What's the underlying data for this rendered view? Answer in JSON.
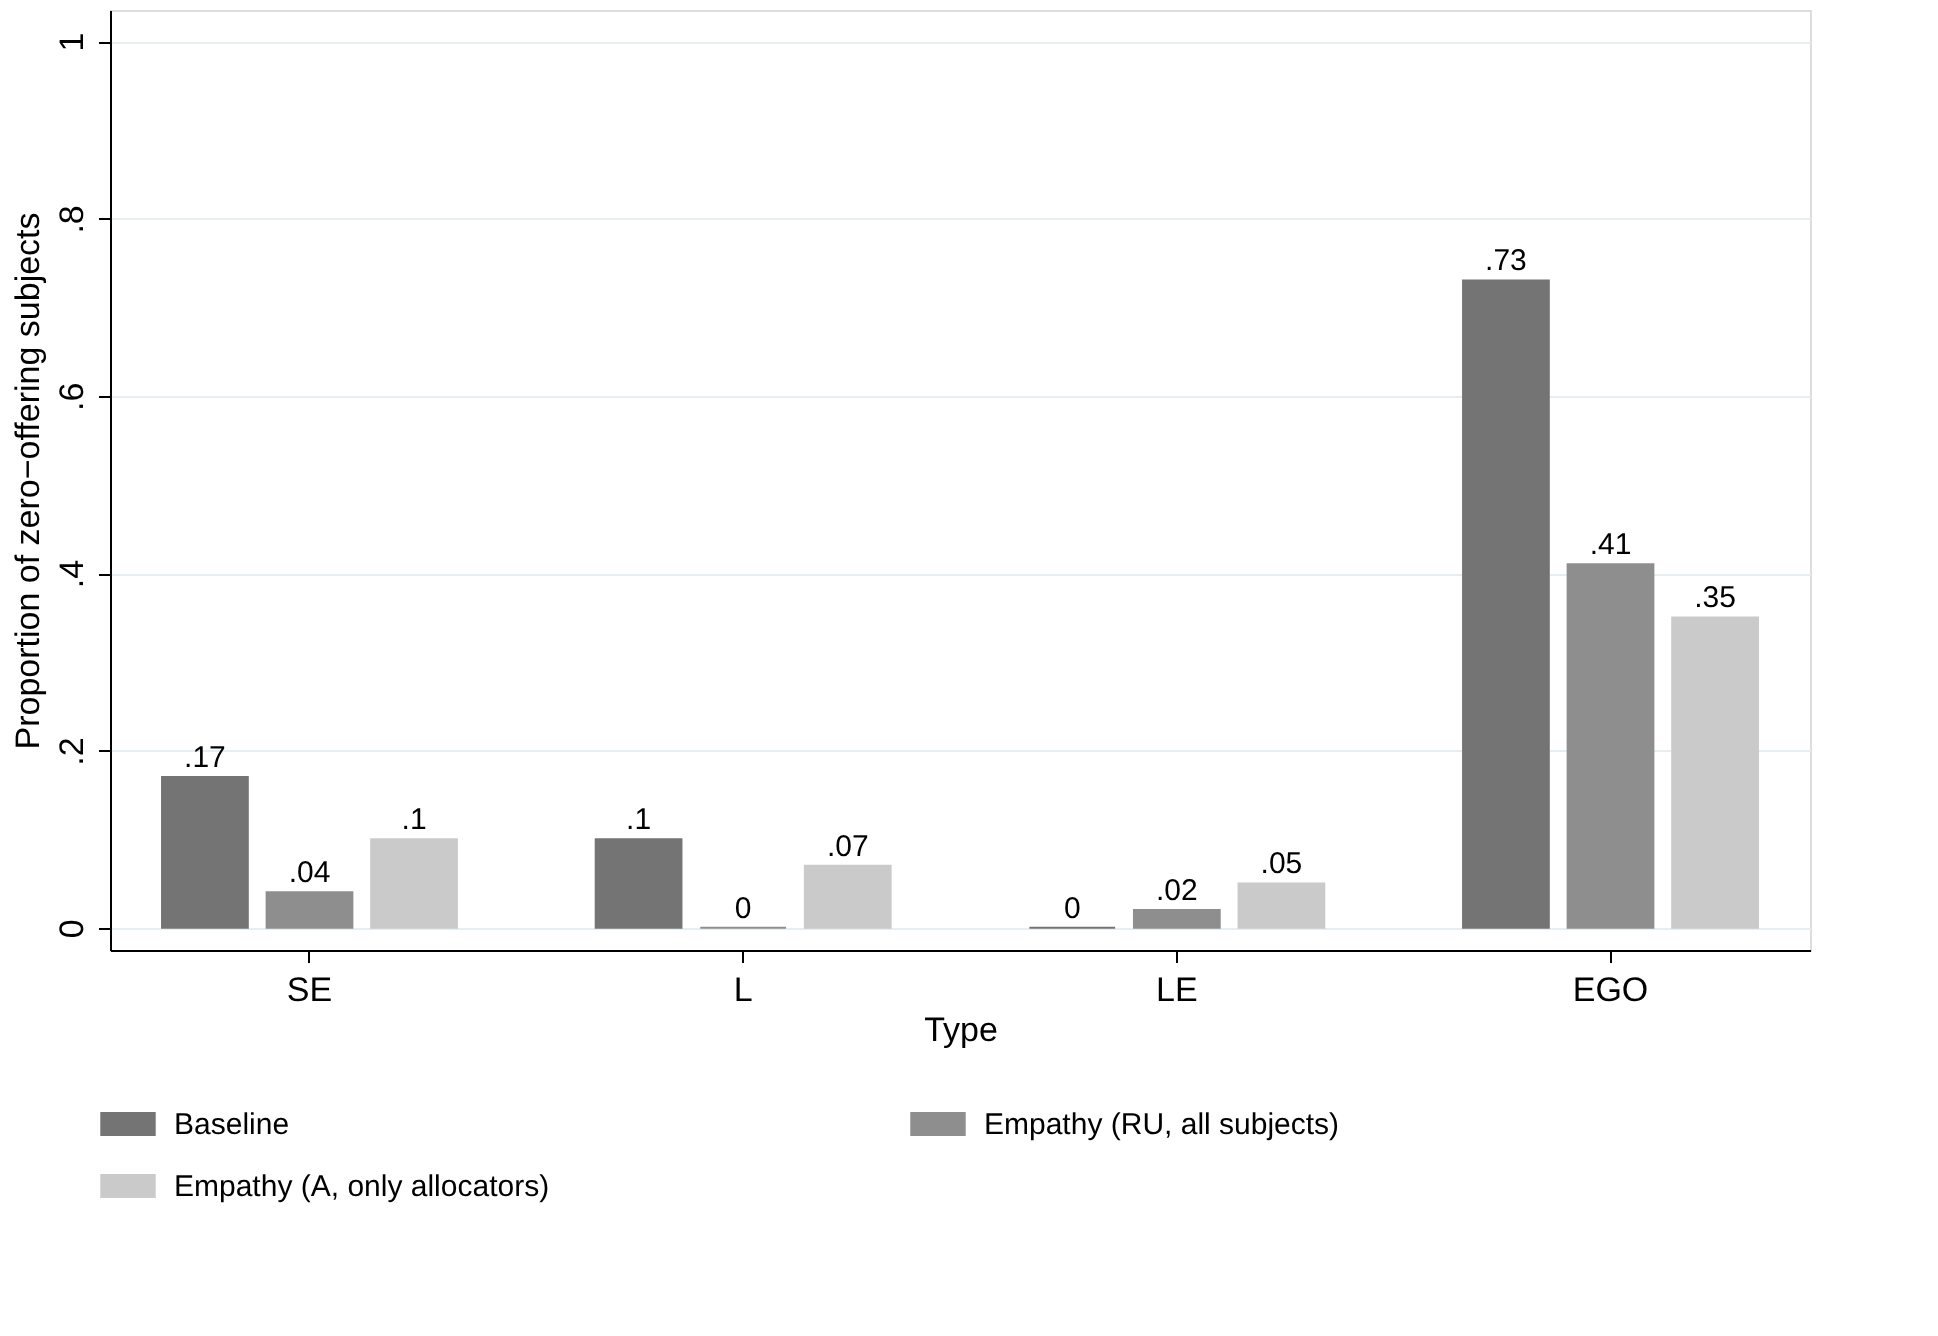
{
  "chart_data": {
    "type": "bar",
    "xlabel": "Type",
    "ylabel": "Proportion of zero−offering subjects",
    "categories": [
      "SE",
      "L",
      "LE",
      "EGO"
    ],
    "series": [
      {
        "name": "Baseline",
        "color": "#747474",
        "values": [
          0.17,
          0.1,
          0,
          0.73
        ],
        "value_labels": [
          ".17",
          ".1",
          "0",
          ".73"
        ]
      },
      {
        "name": "Empathy (RU, all subjects)",
        "color": "#8e8e8e",
        "values": [
          0.04,
          0,
          0.02,
          0.41
        ],
        "value_labels": [
          ".04",
          "0",
          ".02",
          ".41"
        ]
      },
      {
        "name": "Empathy (A, only allocators)",
        "color": "#cacaca",
        "values": [
          0.1,
          0.07,
          0.05,
          0.35
        ],
        "value_labels": [
          ".1",
          ".07",
          ".05",
          ".35"
        ]
      }
    ],
    "ylim": [
      -0.025,
      1.035
    ],
    "yticks": [
      0,
      {
        "value": 0.2,
        "label": ".2"
      },
      {
        "value": 0.4,
        "label": ".4"
      },
      {
        "value": 0.6,
        "label": ".6"
      },
      {
        "value": 0.8,
        "label": ".8"
      },
      1
    ],
    "grid": "y",
    "legend": "bottom"
  }
}
